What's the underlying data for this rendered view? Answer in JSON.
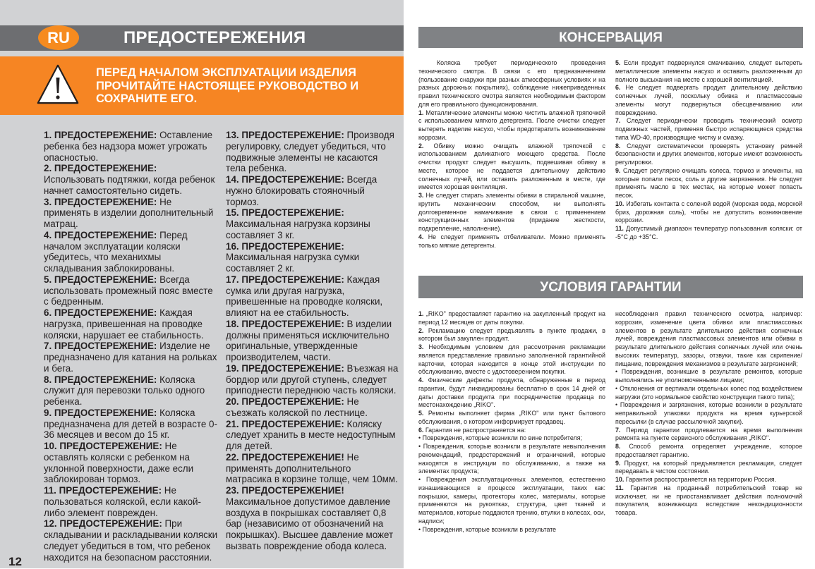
{
  "left_page": {
    "lang_badge": "RU",
    "title": "ПРЕДОСТЕРЕЖЕНИЯ",
    "notice": "ПЕРЕД НАЧАЛОМ ЭКСПЛУАТАЦИИ ИЗДЕЛИЯ ПРОЧИТАЙТЕ НАСТОЯЩЕЕ РУКОВОДСТВО И СОХРАНИТЕ ЕГО.",
    "notice_icon": "warning-triangle-icon",
    "page_number": "12",
    "columns": [
      [
        {
          "label": "1. ПРЕДОСТЕРЕЖЕНИЕ:",
          "text": " Оставление ребенка без надзора может угрожать опасностью."
        },
        {
          "label": "2. ПРЕДОСТЕРЕЖЕНИЕ:",
          "text": " Использовать подтяжки, когда ребенок начнет самостоятельно сидеть."
        },
        {
          "label": "3. ПРЕДОСТЕРЕЖЕНИЕ:",
          "text": " Не применять в изделии дополнительный матрац."
        },
        {
          "label": "4. ПРЕДОСТЕРЕЖЕНИЕ:",
          "text": " Перед началом эксплуатации коляски убедитесь, что механихмы складывания заблокированы."
        },
        {
          "label": "5. ПРЕДОСТЕРЕЖЕНИЕ:",
          "text": " Всегда использовать промежный пояс вместе с бедренным."
        },
        {
          "label": "6. ПРЕДОСТЕРЕЖЕНИЕ:",
          "text": " Каждая нагрузка, привешенная на проводке коляски, нарушает ее стабильность."
        },
        {
          "label": "7. ПРЕДОСТЕРЕЖЕНИЕ:",
          "text": " Изделие не предназначено для катания на рольках и бега."
        },
        {
          "label": "8. ПРЕДОСТЕРЕЖЕНИЕ:",
          "text": " Коляска служит для перевозки только одного ребенка."
        },
        {
          "label": "9. ПРЕДОСТЕРЕЖЕНИЕ:",
          "text": " Коляска предназначена для детей в возрасте 0-36 месяцев и весом до 15 кг."
        },
        {
          "label": "10. ПРЕДОСТЕРЕЖЕНИЕ:",
          "text": " Не оставлять коляски с ребенком на уклонной поверхности, даже если заблокирован тормоз."
        },
        {
          "label": "11. ПРЕДОСТЕРЕЖЕНИЕ:",
          "text": " Не пользоваться коляской, если какой-либо элемент поврежден."
        },
        {
          "label": "12. ПРЕДОСТЕРЕЖЕНИЕ:",
          "text": " При складывании и раскладывании коляски следует убедиться в том, что ребенок находится на безопасном расстоянии."
        }
      ],
      [
        {
          "label": "13. ПРЕДОСТЕРЕЖЕНИЕ:",
          "text": " Производя регулировку, следует убедиться, что подвижные элементы не касаются тела ребенка."
        },
        {
          "label": "14. ПРЕДОСТЕРЕЖЕНИЕ:",
          "text": " Всегда нужно блокировать стояночный тормоз."
        },
        {
          "label": "15. ПРЕДОСТЕРЕЖЕНИЕ:",
          "text": " Максимальная нагрузка корзины составляет 3 кг."
        },
        {
          "label": "16. ПРЕДОСТЕРЕЖЕНИЕ:",
          "text": " Максимальная нагрузка сумки составляет 2 кг."
        },
        {
          "label": "17. ПРЕДОСТЕРЕЖЕНИЕ:",
          "text": " Каждая сумка или другая нагрузка, привешенные на проводке коляски, влияют на ее стабильность."
        },
        {
          "label": "18. ПРЕДОСТЕРЕЖЕНИЕ:",
          "text": " В изделии должны применяться исключительно оригинальные, утвержденные производителем, части."
        },
        {
          "label": "19. ПРЕДОСТЕРЕЖЕНИЕ:",
          "text": " Въезжая на бордюр или другой ступень, следует приподнести переднюю часть коляски."
        },
        {
          "label": "20. ПРЕДОСТЕРЕЖЕНИЕ:",
          "text": " Не съезжать коляской по лестнице."
        },
        {
          "label": "21. ПРЕДОСТЕРЕЖЕНИЕ:",
          "text": " Коляску следует хранить в месте недоступным для детей."
        },
        {
          "label": "22. ПРЕДОСТЕРЕЖЕНИЕ!",
          "text": " Не применять дополнительного матрасика в корзине толще, чем 10мм."
        },
        {
          "label": "23. ПРЕДОСТЕРЕЖЕНИЕ!",
          "text": " Максимальное допустимое давление воздуха в покрышках составляет 0,8 бар (независимо от обозначений на покрышках). Высшее давление может вызвать повреждение обода колеса."
        }
      ]
    ]
  },
  "right_page": {
    "conservation": {
      "title": "КОНСЕРВАЦИЯ",
      "columns": [
        [
          {
            "num": "",
            "text": "Коляска требует периодического проведения технического смотра. В связи с его предназначением (пользование снаружи при разных атмосферных условиях и на разных дорожных покрытиях), соблюдение нижеприведенных правил технического смотра является необходимым фактором для его правильного функционирования."
          },
          {
            "num": "1.",
            "text": " Металлические элементы можно чистить влажной тряпочкой с использованием мягкого детергента. После очистки следует вытереть изделие насухо, чтобы предотвратить возникновение коррозии."
          },
          {
            "num": "2.",
            "text": " Обивку можно очищать влажной тряпочкой с использованием деликатного моющего средства. После очистки продукт следует высушить, подвешивая обивку в месте, которое не поддается длительному действию солнечных лучей, или оставить разложенным в месте, где имеется хорошая вентиляция."
          },
          {
            "num": "3.",
            "text": " Не следует стирать элементы обивки в стиральной машине, крутить механическим способом, ни выполнять долговременное намачивание в связи с применением конструкционных элементов (придание жесткости, подкрепление, наполнение)."
          },
          {
            "num": "4.",
            "text": " Не следует применять отбеливатели. Можно применять только мягкие детергенты."
          }
        ],
        [
          {
            "num": "5.",
            "text": " Если продукт подвернулся смачиванию, следует вытереть металлические элементы насухо и оставить разложенным до полного высыхания на месте с хорошей вентиляцией."
          },
          {
            "num": "6.",
            "text": " Не следует подвергать продукт длительному действию солнечных лучей, поскольку обивка и пластмассовые элементы могут подвернуться обесцвечиванию или повреждению."
          },
          {
            "num": "7.",
            "text": " Следует периодически проводить технический осмотр подвижных частей, применяя быстро испаряющиеся средства типа WD-40, производящие чистку и смазку."
          },
          {
            "num": "8.",
            "text": " Следует систематически проверять установку ремней безопасности и других элементов, которые имеют возможность регулировки."
          },
          {
            "num": "9.",
            "text": " Следует регулярно очищать колеса, тормоз и элементы, на которые попали песок, соль и другие загрязнения. Не следует применять масло в тех местах, на которые может попасть песок."
          },
          {
            "num": "10.",
            "text": " Избегать контакта с соленой водой (морская вода, морской бриз, дорожная соль), чтобы не допустить возникновение коррозии."
          },
          {
            "num": "11.",
            "text": " Допустимый диапазон температур пользования коляски: от -5°С до +35°С."
          }
        ]
      ]
    },
    "warranty": {
      "title": "УСЛОВИЯ ГАРАНТИИ",
      "columns": [
        [
          {
            "num": "1.",
            "text": " „RIKO\" предоставляет гарантию на закупленный продукт на период 12 месяцев от даты покупки."
          },
          {
            "num": "2.",
            "text": " Рекламацию следует предъявлять в пункте продажи, в котором был закуплен продукт."
          },
          {
            "num": "3.",
            "text": " Необходимым условием для рассмотрения рекламации является представление правильно заполненной гарантийной карточки, которая находится в конце этой инструкции по обслуживанию, вместе с удостоверением покупки."
          },
          {
            "num": "4.",
            "text": " Физические дефекты продукта, обнаруженные в период гарантии, будут ликвидированы бесплатно в срок 14 дней от даты доставки продукта при посредничестве продавца по местонахождению „RIKO\"."
          },
          {
            "num": "5.",
            "text": " Ремонты выполняет фирма „RIKO\" или пункт бытового обслуживания, о котором информирует продавец."
          },
          {
            "num": "6.",
            "text": " Гарантия не распространяется на:"
          },
          {
            "num": "",
            "text": "• Повреждения, которые возникли по вине потребителя;"
          },
          {
            "num": "",
            "text": "• Повреждения, которые возникли в результате невыполнения рекомендаций, предостережений и ограничений, которые находятся в инструкции по обслуживанию, а также на элементах продукта;"
          },
          {
            "num": "",
            "text": "• Повреждения эксплуатационных элементов, естественно изнашивающихся в процессе эксплуатации, таких как: покрышки, камеры, протекторы колес, материалы, которые применяются на рукоятках, структура, цвет тканей и материалов, которые поддаются трению, втулки в колесах, оси, надписи;"
          },
          {
            "num": "",
            "text": "• Повреждения, которые возникли в результате"
          }
        ],
        [
          {
            "num": "",
            "text": "несоблюдения правил технического осмотра, например: коррозия, изменение цвета обивки или пластмассовых элементов в результате длительного действия солнечных лучей, повреждения пластмассовых элементов или обивки в результате длительного действия солнечных лучей или очень высоких температур, зазоры, отзвуки, такие как скрипение/ пищание, повреждения механизмов в результате загрязнений;"
          },
          {
            "num": "",
            "text": "• Повреждения, возникшие в результате ремонтов, которые выполнялись не уполномоченными лицами;"
          },
          {
            "num": "",
            "text": "• Отклонения от вертикали отдельных колес под воздействием нагрузки (это нормальное свойство конструкции такого типа);"
          },
          {
            "num": "",
            "text": "• Повреждения и загрязнения, которые возникли в результате неправильной упаковки продукта на время курьерской пересылки (в случае рассылочной закупки)."
          },
          {
            "num": "7.",
            "text": " Период гарантии продлевается на время выполнения ремонта на пункте сервисного обслуживания „RIKO\"."
          },
          {
            "num": "8.",
            "text": " Способ ремонта определяет учреждение, которое предоставляет гарантию."
          },
          {
            "num": "9.",
            "text": " Продукт, на который предъявляется рекламация, следует передавать в чистом состоянии."
          },
          {
            "num": "10.",
            "text": " Гарантия распространяется на территорию Россия."
          },
          {
            "num": "11.",
            "text": " Гарантия на проданный потребительский товар не исключает, ни не приостанавливает действия полномочий покупателя, возникающих вследствие некондиционности товара."
          }
        ]
      ]
    }
  },
  "colors": {
    "orange": "#f68523",
    "dark_gray_bar": "#6d6e71",
    "section_bar": "#808285",
    "left_page_bg": "#d1d2d4"
  }
}
